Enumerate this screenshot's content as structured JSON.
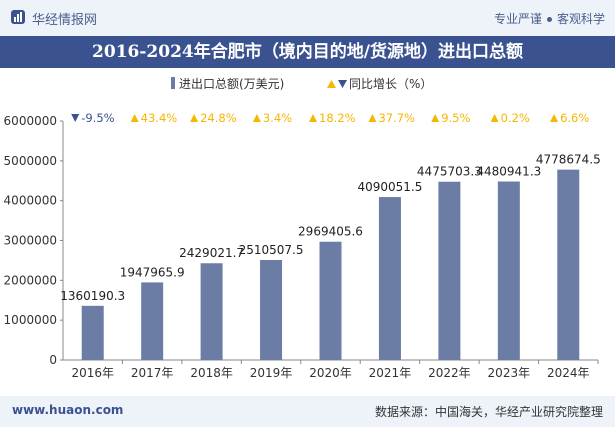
{
  "header": {
    "brand": "华经情报网",
    "tag_left": "专业严谨",
    "tag_right": "客观科学"
  },
  "footer": {
    "website": "www.huaon.com",
    "source": "数据来源：中国海关，华经产业研究院整理"
  },
  "colors": {
    "bar": "#6b7ca5",
    "up": "#f5b700",
    "down": "#3b5290",
    "title_bg": "#3b5290"
  },
  "chart_data": {
    "type": "bar",
    "title": "2016-2024年合肥市（境内目的地/货源地）进出口总额",
    "legend": {
      "bar": "进出口总额(万美元)",
      "growth": "同比增长（%）",
      "placement": "top-center"
    },
    "categories": [
      "2016年",
      "2017年",
      "2018年",
      "2019年",
      "2020年",
      "2021年",
      "2022年",
      "2023年",
      "2024年"
    ],
    "values": [
      1360190.3,
      1947965.9,
      2429021.7,
      2510507.5,
      2969405.6,
      4090051.5,
      4475703.3,
      4480941.3,
      4778674.5
    ],
    "value_labels": [
      "1360190.3",
      "1947965.9",
      "2429021.7",
      "2510507.5",
      "2969405.6",
      "4090051.5",
      "4475703.3",
      "4480941.3",
      "4778674.5"
    ],
    "growth": [
      "-9.5%",
      "43.4%",
      "24.8%",
      "3.4%",
      "18.2%",
      "37.7%",
      "9.5%",
      "0.2%",
      "6.6%"
    ],
    "growth_direction": [
      "down",
      "up",
      "up",
      "up",
      "up",
      "up",
      "up",
      "up",
      "up"
    ],
    "yticks": [
      "0",
      "1000000",
      "2000000",
      "3000000",
      "4000000",
      "5000000",
      "6000000"
    ],
    "ylim": [
      0,
      6000000
    ],
    "grid": false
  }
}
